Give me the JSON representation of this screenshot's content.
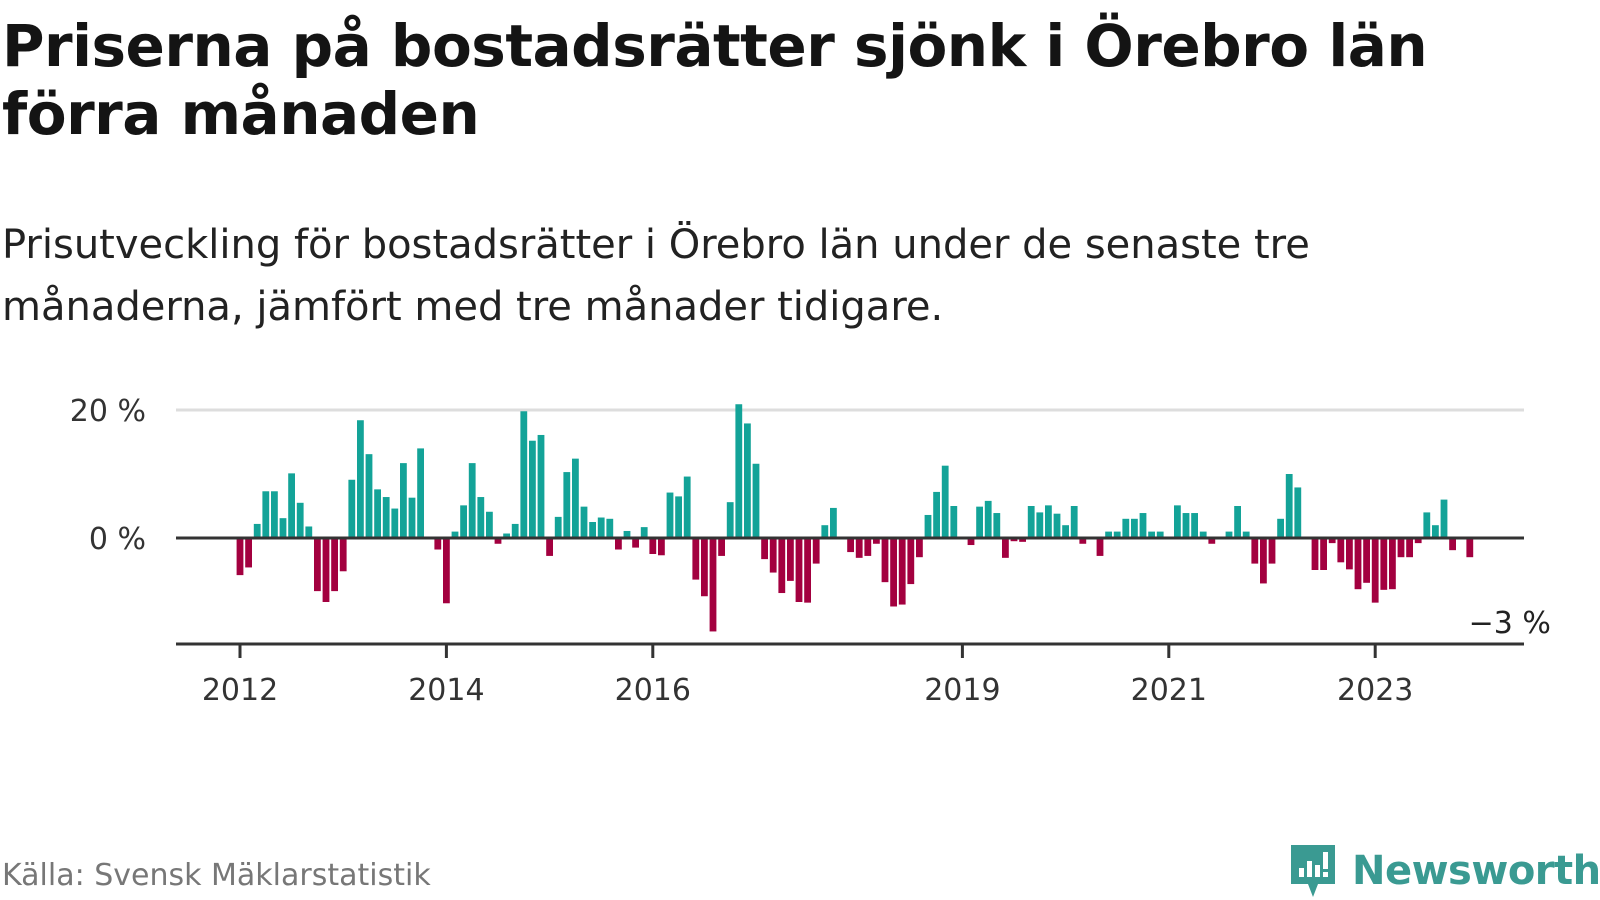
{
  "header": {
    "title": "Priserna på bostadsrätter sjönk i Örebro län förra månaden",
    "subtitle": "Prisutveckling för bostadsrätter i Örebro län under de senaste tre månaderna, jämfört med tre månader tidigare."
  },
  "footer": {
    "source": "Källa: Svensk Mäklarstatistik",
    "brand": "Newsworthy"
  },
  "colors": {
    "positive": "#13a398",
    "negative": "#a3003f",
    "axis": "#333333",
    "grid": "#dddddd",
    "brand": "#3a9a92"
  },
  "chart_data": {
    "type": "bar",
    "title": "",
    "xlabel": "",
    "ylabel": "",
    "ylim": [
      -17,
      20
    ],
    "yticks": [
      {
        "value": 0,
        "label": "0 %"
      },
      {
        "value": 20,
        "label": "20 %"
      }
    ],
    "xticks": [
      {
        "date": "2012-01",
        "label": "2012"
      },
      {
        "date": "2014-01",
        "label": "2014"
      },
      {
        "date": "2016-01",
        "label": "2016"
      },
      {
        "date": "2019-01",
        "label": "2019"
      },
      {
        "date": "2021-01",
        "label": "2021"
      },
      {
        "date": "2023-01",
        "label": "2023"
      }
    ],
    "start_date": "2012-01",
    "last_label": "−3 %",
    "values": [
      -5.8,
      -4.6,
      2.2,
      7.3,
      7.3,
      3.1,
      10.1,
      5.5,
      1.8,
      -8.3,
      -10.0,
      -8.3,
      -5.2,
      9.1,
      18.4,
      13.1,
      7.6,
      6.4,
      4.6,
      11.7,
      6.3,
      14.0,
      0,
      -1.8,
      -10.2,
      1.0,
      5.1,
      11.7,
      6.4,
      4.1,
      -0.9,
      0.7,
      2.2,
      19.8,
      15.2,
      16.1,
      -2.8,
      3.3,
      10.3,
      12.4,
      4.9,
      2.5,
      3.2,
      3.0,
      -1.8,
      1.1,
      -1.5,
      1.7,
      -2.5,
      -2.7,
      7.1,
      6.5,
      9.6,
      -6.5,
      -9.1,
      -14.6,
      -2.8,
      5.6,
      20.9,
      17.9,
      11.6,
      -3.3,
      -5.4,
      -8.6,
      -6.7,
      -10.0,
      -10.1,
      -4.0,
      2.0,
      4.7,
      0,
      -2.2,
      -3.1,
      -2.8,
      -0.9,
      -6.9,
      -10.7,
      -10.4,
      -7.2,
      -3.0,
      3.6,
      7.2,
      11.3,
      5.0,
      0.1,
      -1.1,
      4.9,
      5.8,
      3.9,
      -3.1,
      -0.5,
      -0.6,
      5.0,
      4.0,
      5.1,
      3.8,
      2.0,
      5.0,
      -0.9,
      0.1,
      -2.8,
      1.0,
      1.0,
      3.0,
      3.0,
      3.9,
      1.0,
      1.0,
      0,
      5.1,
      3.9,
      3.9,
      1.0,
      -0.9,
      0,
      1.0,
      5.0,
      1.0,
      -4.0,
      -7.1,
      -4.0,
      3.0,
      10.0,
      7.9,
      0,
      -5.0,
      -5.0,
      -0.8,
      -3.8,
      -4.9,
      -8.0,
      -7.0,
      -10.1,
      -8.1,
      -8.0,
      -3.0,
      -3.0,
      -0.8,
      4.0,
      2.0,
      6.0,
      -1.9,
      0,
      -3.0
    ]
  }
}
